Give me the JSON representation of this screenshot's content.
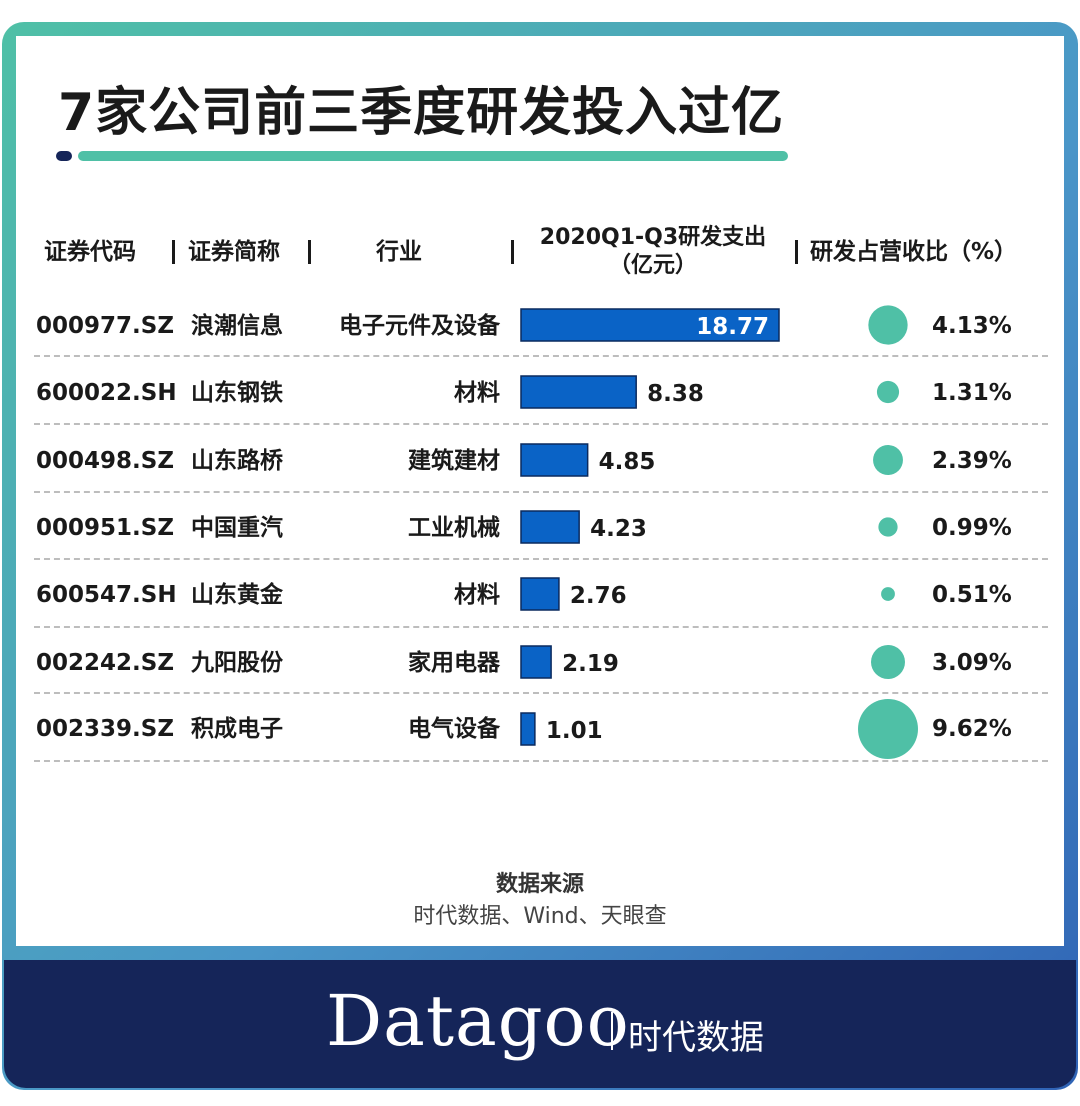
{
  "title": "7家公司前三季度研发投入过亿",
  "headers": {
    "code": "证券代码",
    "name": "证券简称",
    "industry": "行业",
    "spend_line1": "2020Q1-Q3研发支出",
    "spend_line2": "（亿元）",
    "ratio": "研发占营收比（%）"
  },
  "rows": [
    {
      "code": "000977.SZ",
      "name": "浪潮信息",
      "industry": "电子元件及设备",
      "spend_label": "18.77",
      "ratio_label": "4.13%"
    },
    {
      "code": "600022.SH",
      "name": "山东钢铁",
      "industry": "材料",
      "spend_label": "8.38",
      "ratio_label": "1.31%"
    },
    {
      "code": "000498.SZ",
      "name": "山东路桥",
      "industry": "建筑建材",
      "spend_label": "4.85",
      "ratio_label": "2.39%"
    },
    {
      "code": "000951.SZ",
      "name": "中国重汽",
      "industry": "工业机械",
      "spend_label": "4.23",
      "ratio_label": "0.99%"
    },
    {
      "code": "600547.SH",
      "name": "山东黄金",
      "industry": "材料",
      "spend_label": "2.76",
      "ratio_label": "0.51%"
    },
    {
      "code": "002242.SZ",
      "name": "九阳股份",
      "industry": "家用电器",
      "spend_label": "2.19",
      "ratio_label": "3.09%"
    },
    {
      "code": "002339.SZ",
      "name": "积成电子",
      "industry": "电气设备",
      "spend_label": "1.01",
      "ratio_label": "9.62%"
    }
  ],
  "chart_data": {
    "type": "table",
    "columns": [
      "证券代码",
      "证券简称",
      "行业",
      "2020Q1-Q3研发支出（亿元）",
      "研发占营收比（%）"
    ],
    "categories": [
      "浪潮信息",
      "山东钢铁",
      "山东路桥",
      "中国重汽",
      "山东黄金",
      "九阳股份",
      "积成电子"
    ],
    "series": [
      {
        "name": "2020Q1-Q3研发支出（亿元）",
        "type": "bar",
        "values": [
          18.77,
          8.38,
          4.85,
          4.23,
          2.76,
          2.19,
          1.01
        ]
      },
      {
        "name": "研发占营收比（%）",
        "type": "bubble",
        "values": [
          4.13,
          1.31,
          2.39,
          0.99,
          0.51,
          3.09,
          9.62
        ]
      }
    ]
  },
  "colors": {
    "bar": "#0a63c6",
    "bar_outline": "#0a2a5e",
    "bubble": "#4fc0a6",
    "navy": "#152559",
    "teal": "#4fc0a6"
  },
  "source": {
    "label": "数据来源",
    "text": "时代数据、Wind、天眼查"
  },
  "brand": {
    "name": "Datagoo",
    "cn": "时代数据"
  }
}
